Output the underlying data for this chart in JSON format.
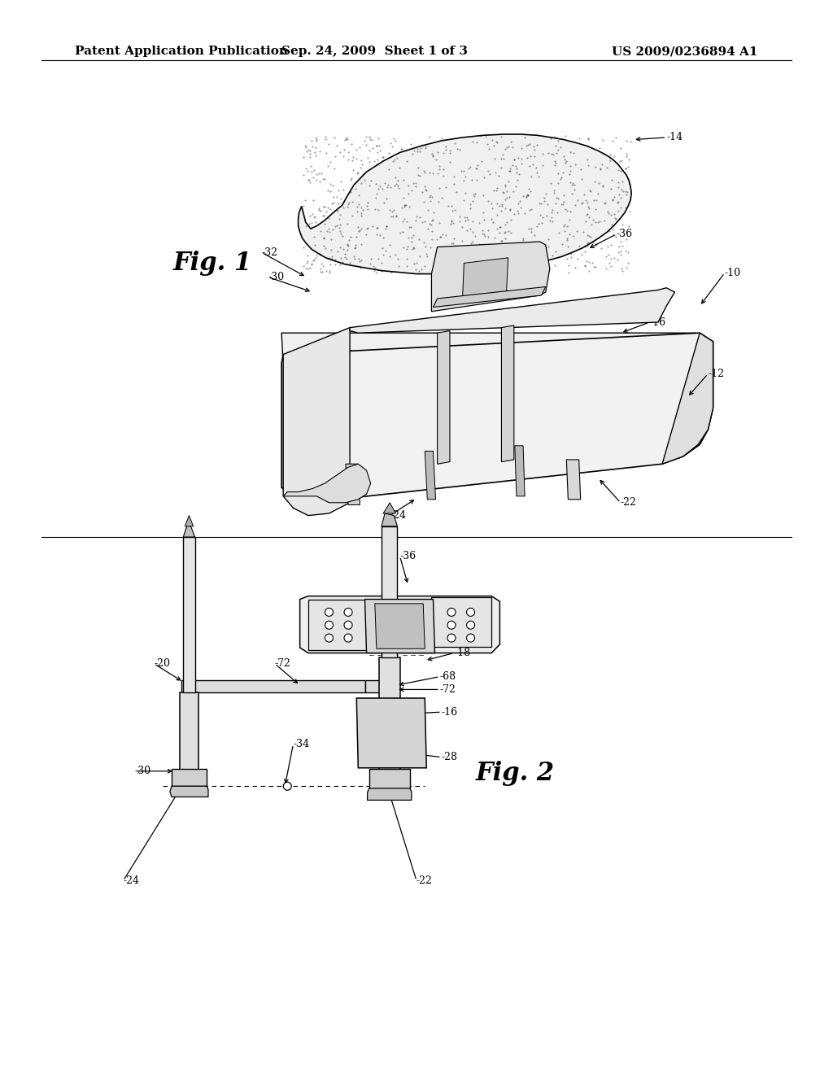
{
  "background_color": "#ffffff",
  "header_text_left": "Patent Application Publication",
  "header_text_center": "Sep. 24, 2009  Sheet 1 of 3",
  "header_text_right": "US 2009/0236894 A1",
  "header_font_size": 11,
  "fig1_label": "Fig. 1",
  "fig2_label": "Fig. 2",
  "line_color": "#000000",
  "ref_font_size": 9.5
}
